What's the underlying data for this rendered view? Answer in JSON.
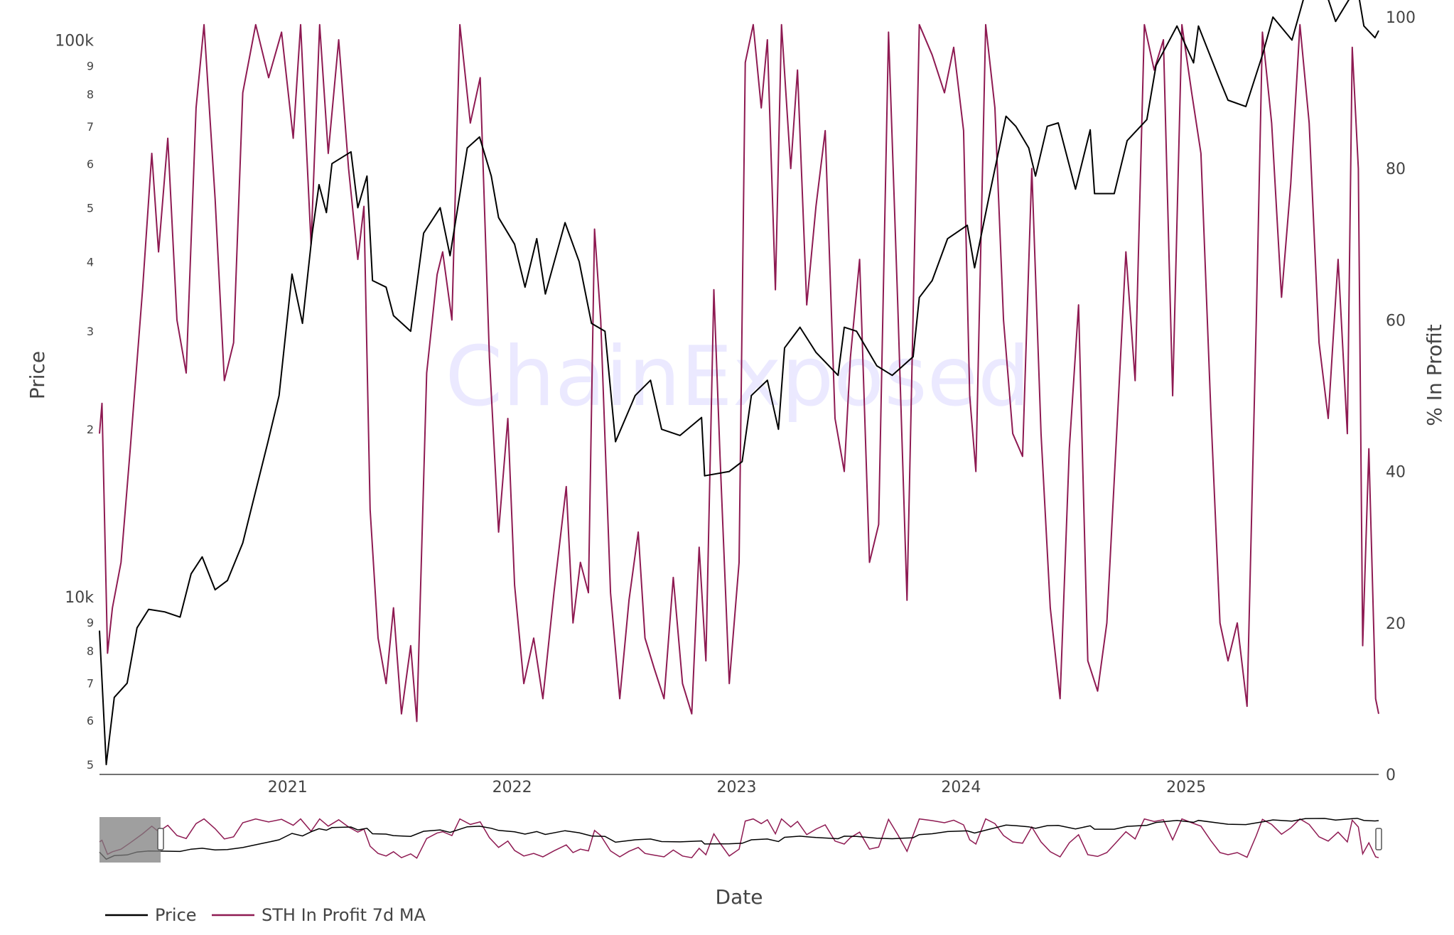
{
  "watermark": "ChainExposed",
  "chart_data": {
    "type": "line",
    "x_range": [
      "2020-03-01",
      "2025-11-10"
    ],
    "x_ticks": [
      "2021",
      "2022",
      "2023",
      "2024",
      "2025"
    ],
    "xlabel": "Date",
    "y_left": {
      "label": "Price",
      "scale": "log",
      "range": [
        4800,
        110000
      ],
      "major_ticks": [
        {
          "value": 10000,
          "label": "10k"
        },
        {
          "value": 100000,
          "label": "100k"
        }
      ],
      "minor_ticks": [
        {
          "value": 5000,
          "label": "5"
        },
        {
          "value": 6000,
          "label": "6"
        },
        {
          "value": 7000,
          "label": "7"
        },
        {
          "value": 8000,
          "label": "8"
        },
        {
          "value": 9000,
          "label": "9"
        },
        {
          "value": 20000,
          "label": "2"
        },
        {
          "value": 30000,
          "label": "3"
        },
        {
          "value": 40000,
          "label": "4"
        },
        {
          "value": 50000,
          "label": "5"
        },
        {
          "value": 60000,
          "label": "6"
        },
        {
          "value": 70000,
          "label": "7"
        },
        {
          "value": 80000,
          "label": "8"
        },
        {
          "value": 90000,
          "label": "9"
        }
      ]
    },
    "y_right": {
      "label": "% In Profit",
      "scale": "linear",
      "range": [
        0,
        100
      ],
      "ticks": [
        "0",
        "20",
        "40",
        "60",
        "80",
        "100"
      ]
    },
    "series": [
      {
        "name": "Price",
        "color": "#000000",
        "axis": "left",
        "points": [
          [
            "2020-03-01",
            8700
          ],
          [
            "2020-03-12",
            5000
          ],
          [
            "2020-03-25",
            6600
          ],
          [
            "2020-04-15",
            7000
          ],
          [
            "2020-05-01",
            8800
          ],
          [
            "2020-05-20",
            9500
          ],
          [
            "2020-06-15",
            9400
          ],
          [
            "2020-07-10",
            9200
          ],
          [
            "2020-07-28",
            11000
          ],
          [
            "2020-08-15",
            11800
          ],
          [
            "2020-09-05",
            10300
          ],
          [
            "2020-09-25",
            10700
          ],
          [
            "2020-10-20",
            12500
          ],
          [
            "2020-11-10",
            15500
          ],
          [
            "2020-11-30",
            19000
          ],
          [
            "2020-12-18",
            23000
          ],
          [
            "2021-01-08",
            38000
          ],
          [
            "2021-01-25",
            31000
          ],
          [
            "2021-02-10",
            45000
          ],
          [
            "2021-02-21",
            55000
          ],
          [
            "2021-03-05",
            49000
          ],
          [
            "2021-03-14",
            60000
          ],
          [
            "2021-04-14",
            63000
          ],
          [
            "2021-04-25",
            50000
          ],
          [
            "2021-05-10",
            57000
          ],
          [
            "2021-05-19",
            37000
          ],
          [
            "2021-06-10",
            36000
          ],
          [
            "2021-06-22",
            32000
          ],
          [
            "2021-07-20",
            30000
          ],
          [
            "2021-08-10",
            45000
          ],
          [
            "2021-09-06",
            50000
          ],
          [
            "2021-09-22",
            41000
          ],
          [
            "2021-10-20",
            64000
          ],
          [
            "2021-11-09",
            67000
          ],
          [
            "2021-11-28",
            57000
          ],
          [
            "2021-12-10",
            48000
          ],
          [
            "2022-01-05",
            43000
          ],
          [
            "2022-01-22",
            36000
          ],
          [
            "2022-02-10",
            44000
          ],
          [
            "2022-02-24",
            35000
          ],
          [
            "2022-03-28",
            47000
          ],
          [
            "2022-04-20",
            40000
          ],
          [
            "2022-05-10",
            31000
          ],
          [
            "2022-06-01",
            30000
          ],
          [
            "2022-06-18",
            19000
          ],
          [
            "2022-07-20",
            23000
          ],
          [
            "2022-08-14",
            24500
          ],
          [
            "2022-09-01",
            20000
          ],
          [
            "2022-10-01",
            19500
          ],
          [
            "2022-11-05",
            21000
          ],
          [
            "2022-11-10",
            16500
          ],
          [
            "2022-12-20",
            16800
          ],
          [
            "2023-01-10",
            17500
          ],
          [
            "2023-01-25",
            23000
          ],
          [
            "2023-02-20",
            24500
          ],
          [
            "2023-03-10",
            20000
          ],
          [
            "2023-03-20",
            28000
          ],
          [
            "2023-04-14",
            30500
          ],
          [
            "2023-05-10",
            27500
          ],
          [
            "2023-06-15",
            25000
          ],
          [
            "2023-06-25",
            30500
          ],
          [
            "2023-07-15",
            30000
          ],
          [
            "2023-08-17",
            26000
          ],
          [
            "2023-09-11",
            25000
          ],
          [
            "2023-10-15",
            27000
          ],
          [
            "2023-10-25",
            34500
          ],
          [
            "2023-11-15",
            37000
          ],
          [
            "2023-12-10",
            44000
          ],
          [
            "2024-01-11",
            46500
          ],
          [
            "2024-01-23",
            39000
          ],
          [
            "2024-02-15",
            52000
          ],
          [
            "2024-03-14",
            73000
          ],
          [
            "2024-03-30",
            70000
          ],
          [
            "2024-04-20",
            64000
          ],
          [
            "2024-05-01",
            57000
          ],
          [
            "2024-05-20",
            70000
          ],
          [
            "2024-06-07",
            71000
          ],
          [
            "2024-07-05",
            54000
          ],
          [
            "2024-07-29",
            69000
          ],
          [
            "2024-08-05",
            53000
          ],
          [
            "2024-09-06",
            53000
          ],
          [
            "2024-09-27",
            66000
          ],
          [
            "2024-10-29",
            72000
          ],
          [
            "2024-11-13",
            90000
          ],
          [
            "2024-12-17",
            106000
          ],
          [
            "2025-01-13",
            91000
          ],
          [
            "2025-01-21",
            106000
          ],
          [
            "2025-02-26",
            84000
          ],
          [
            "2025-03-10",
            78000
          ],
          [
            "2025-04-08",
            76000
          ],
          [
            "2025-05-05",
            94000
          ],
          [
            "2025-05-22",
            110000
          ],
          [
            "2025-06-22",
            100000
          ],
          [
            "2025-07-14",
            122000
          ],
          [
            "2025-08-14",
            124000
          ],
          [
            "2025-09-01",
            108000
          ],
          [
            "2025-10-06",
            125000
          ],
          [
            "2025-10-17",
            106000
          ],
          [
            "2025-11-04",
            101000
          ],
          [
            "2025-11-10",
            104000
          ]
        ]
      },
      {
        "name": "STH In Profit 7d MA",
        "color": "#8e1a52",
        "axis": "right",
        "points": [
          [
            "2020-03-01",
            45
          ],
          [
            "2020-03-05",
            49
          ],
          [
            "2020-03-14",
            16
          ],
          [
            "2020-03-22",
            22
          ],
          [
            "2020-04-05",
            28
          ],
          [
            "2020-04-20",
            43
          ],
          [
            "2020-05-10",
            64
          ],
          [
            "2020-05-25",
            82
          ],
          [
            "2020-06-05",
            69
          ],
          [
            "2020-06-20",
            84
          ],
          [
            "2020-07-05",
            60
          ],
          [
            "2020-07-20",
            53
          ],
          [
            "2020-08-05",
            88
          ],
          [
            "2020-08-18",
            99
          ],
          [
            "2020-09-05",
            76
          ],
          [
            "2020-09-20",
            52
          ],
          [
            "2020-10-05",
            57
          ],
          [
            "2020-10-20",
            90
          ],
          [
            "2020-11-10",
            99
          ],
          [
            "2020-12-01",
            92
          ],
          [
            "2020-12-22",
            98
          ],
          [
            "2021-01-10",
            84
          ],
          [
            "2021-01-22",
            99
          ],
          [
            "2021-02-08",
            70
          ],
          [
            "2021-02-22",
            99
          ],
          [
            "2021-03-08",
            82
          ],
          [
            "2021-03-25",
            97
          ],
          [
            "2021-04-10",
            80
          ],
          [
            "2021-04-25",
            68
          ],
          [
            "2021-05-05",
            75
          ],
          [
            "2021-05-15",
            35
          ],
          [
            "2021-05-28",
            18
          ],
          [
            "2021-06-10",
            12
          ],
          [
            "2021-06-22",
            22
          ],
          [
            "2021-07-05",
            8
          ],
          [
            "2021-07-20",
            17
          ],
          [
            "2021-07-30",
            7
          ],
          [
            "2021-08-15",
            53
          ],
          [
            "2021-09-01",
            66
          ],
          [
            "2021-09-10",
            69
          ],
          [
            "2021-09-25",
            60
          ],
          [
            "2021-10-08",
            99
          ],
          [
            "2021-10-25",
            86
          ],
          [
            "2021-11-10",
            92
          ],
          [
            "2021-11-25",
            55
          ],
          [
            "2021-12-10",
            32
          ],
          [
            "2021-12-25",
            47
          ],
          [
            "2022-01-05",
            25
          ],
          [
            "2022-01-20",
            12
          ],
          [
            "2022-02-05",
            18
          ],
          [
            "2022-02-20",
            10
          ],
          [
            "2022-03-10",
            24
          ],
          [
            "2022-03-30",
            38
          ],
          [
            "2022-04-10",
            20
          ],
          [
            "2022-04-22",
            28
          ],
          [
            "2022-05-05",
            24
          ],
          [
            "2022-05-15",
            72
          ],
          [
            "2022-05-25",
            60
          ],
          [
            "2022-06-10",
            24
          ],
          [
            "2022-06-25",
            10
          ],
          [
            "2022-07-10",
            23
          ],
          [
            "2022-07-25",
            32
          ],
          [
            "2022-08-05",
            18
          ],
          [
            "2022-08-20",
            14
          ],
          [
            "2022-09-05",
            10
          ],
          [
            "2022-09-20",
            26
          ],
          [
            "2022-10-05",
            12
          ],
          [
            "2022-10-20",
            8
          ],
          [
            "2022-11-01",
            30
          ],
          [
            "2022-11-12",
            15
          ],
          [
            "2022-11-25",
            64
          ],
          [
            "2022-12-05",
            42
          ],
          [
            "2022-12-20",
            12
          ],
          [
            "2023-01-05",
            28
          ],
          [
            "2023-01-15",
            94
          ],
          [
            "2023-01-28",
            99
          ],
          [
            "2023-02-10",
            88
          ],
          [
            "2023-02-20",
            97
          ],
          [
            "2023-03-05",
            64
          ],
          [
            "2023-03-15",
            99
          ],
          [
            "2023-03-30",
            80
          ],
          [
            "2023-04-10",
            93
          ],
          [
            "2023-04-25",
            62
          ],
          [
            "2023-05-10",
            75
          ],
          [
            "2023-05-25",
            85
          ],
          [
            "2023-06-10",
            47
          ],
          [
            "2023-06-25",
            40
          ],
          [
            "2023-07-05",
            55
          ],
          [
            "2023-07-20",
            68
          ],
          [
            "2023-08-05",
            28
          ],
          [
            "2023-08-20",
            33
          ],
          [
            "2023-09-05",
            98
          ],
          [
            "2023-09-20",
            62
          ],
          [
            "2023-10-05",
            23
          ],
          [
            "2023-10-25",
            99
          ],
          [
            "2023-11-15",
            95
          ],
          [
            "2023-12-05",
            90
          ],
          [
            "2023-12-20",
            96
          ],
          [
            "2024-01-05",
            85
          ],
          [
            "2024-01-15",
            50
          ],
          [
            "2024-01-25",
            40
          ],
          [
            "2024-02-10",
            99
          ],
          [
            "2024-02-25",
            88
          ],
          [
            "2024-03-10",
            60
          ],
          [
            "2024-03-25",
            45
          ],
          [
            "2024-04-10",
            42
          ],
          [
            "2024-04-25",
            80
          ],
          [
            "2024-05-10",
            45
          ],
          [
            "2024-05-25",
            22
          ],
          [
            "2024-06-10",
            10
          ],
          [
            "2024-06-25",
            43
          ],
          [
            "2024-07-10",
            62
          ],
          [
            "2024-07-25",
            15
          ],
          [
            "2024-08-10",
            11
          ],
          [
            "2024-08-25",
            20
          ],
          [
            "2024-09-10",
            45
          ],
          [
            "2024-09-25",
            69
          ],
          [
            "2024-10-10",
            52
          ],
          [
            "2024-10-25",
            99
          ],
          [
            "2024-11-10",
            93
          ],
          [
            "2024-11-25",
            97
          ],
          [
            "2024-12-10",
            50
          ],
          [
            "2024-12-25",
            99
          ],
          [
            "2025-01-10",
            90
          ],
          [
            "2025-01-25",
            82
          ],
          [
            "2025-02-10",
            48
          ],
          [
            "2025-02-25",
            20
          ],
          [
            "2025-03-10",
            15
          ],
          [
            "2025-03-25",
            20
          ],
          [
            "2025-04-10",
            9
          ],
          [
            "2025-04-25",
            60
          ],
          [
            "2025-05-05",
            98
          ],
          [
            "2025-05-20",
            86
          ],
          [
            "2025-06-05",
            63
          ],
          [
            "2025-06-20",
            78
          ],
          [
            "2025-07-05",
            99
          ],
          [
            "2025-07-20",
            86
          ],
          [
            "2025-08-05",
            57
          ],
          [
            "2025-08-20",
            47
          ],
          [
            "2025-09-05",
            68
          ],
          [
            "2025-09-20",
            45
          ],
          [
            "2025-09-28",
            96
          ],
          [
            "2025-10-08",
            80
          ],
          [
            "2025-10-15",
            17
          ],
          [
            "2025-10-25",
            43
          ],
          [
            "2025-11-05",
            10
          ],
          [
            "2025-11-10",
            8
          ]
        ]
      }
    ],
    "legend": {
      "position": "bottom-left",
      "entries": [
        "Price",
        "STH In Profit 7d MA"
      ]
    },
    "range_slider": true,
    "grid": false
  }
}
